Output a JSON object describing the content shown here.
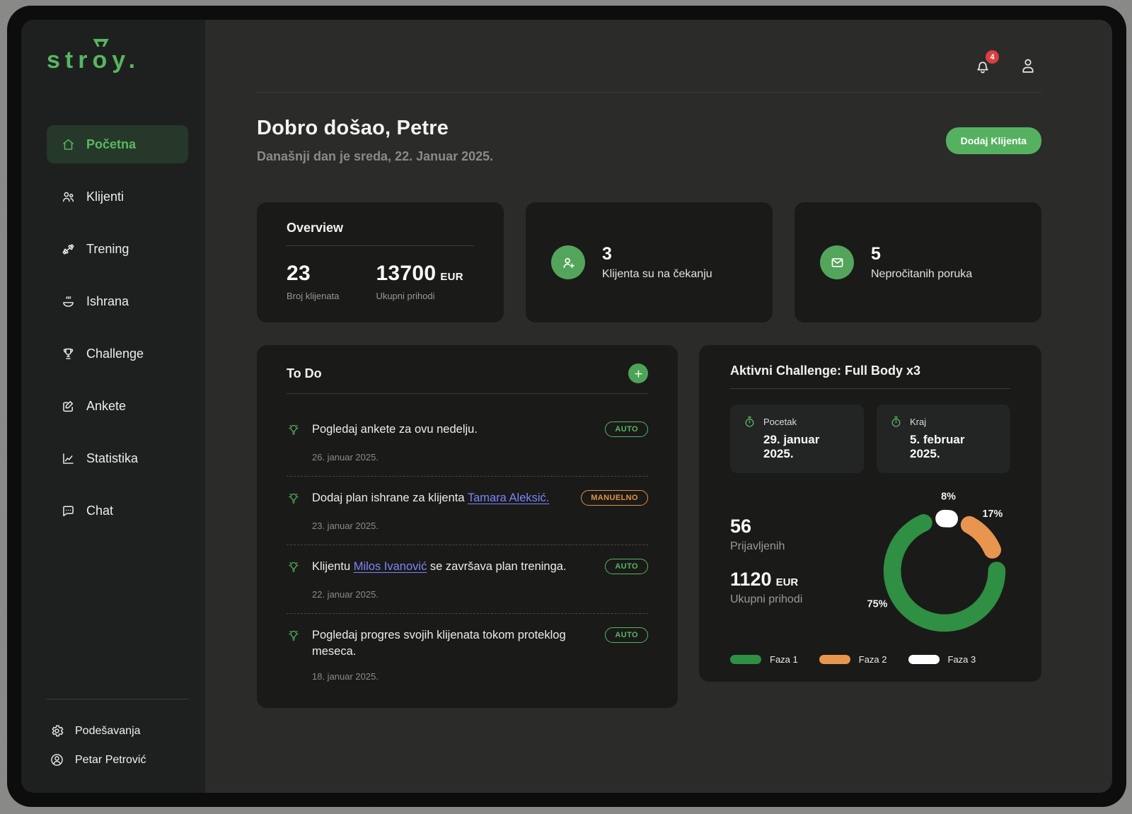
{
  "brand": {
    "logo_text": "stroy.",
    "logo_str": "str",
    "logo_o": "o",
    "logo_y": "y."
  },
  "colors": {
    "accent_green": "#57b560",
    "button_green": "#55b15f",
    "badge_orange": "#e2923f",
    "link_blue": "#7b86f8",
    "notification_red": "#d94040"
  },
  "sidebar": {
    "items": [
      {
        "label": "Početna",
        "icon": "home",
        "active": true
      },
      {
        "label": "Klijenti",
        "icon": "users",
        "active": false
      },
      {
        "label": "Trening",
        "icon": "dumbbell",
        "active": false
      },
      {
        "label": "Ishrana",
        "icon": "bowl",
        "active": false
      },
      {
        "label": "Challenge",
        "icon": "trophy",
        "active": false
      },
      {
        "label": "Ankete",
        "icon": "edit-note",
        "active": false
      },
      {
        "label": "Statistika",
        "icon": "line-chart",
        "active": false
      },
      {
        "label": "Chat",
        "icon": "chat-bubble",
        "active": false
      }
    ],
    "footer": {
      "settings_label": "Podešavanja",
      "profile_name": "Petar Petrović"
    }
  },
  "header": {
    "notification_count": "4"
  },
  "welcome": {
    "title": "Dobro došao, Petre",
    "subtitle": "Današnji dan je sreda, 22. Januar 2025.",
    "add_client_label": "Dodaj Klijenta"
  },
  "overview": {
    "title": "Overview",
    "clients_value": "23",
    "clients_label": "Broj klijenata",
    "revenue_value": "13700",
    "revenue_unit": "EUR",
    "revenue_label": "Ukupni prihodi"
  },
  "pending_card": {
    "value": "3",
    "label": "Klijenta su na čekanju"
  },
  "messages_card": {
    "value": "5",
    "label": "Nepročitanih poruka"
  },
  "todo": {
    "title": "To Do",
    "items": [
      {
        "text_pre": "Pogledaj ankete za ovu nedelju.",
        "link": "",
        "text_post": "",
        "date": "26. januar 2025.",
        "badge": "AUTO"
      },
      {
        "text_pre": "Dodaj plan ishrane za klijenta ",
        "link": "Tamara Aleksić.",
        "text_post": "",
        "date": "23. januar 2025.",
        "badge": "MANUELNO"
      },
      {
        "text_pre": "Klijentu ",
        "link": "Milos Ivanović",
        "text_post": " se završava plan treninga.",
        "date": "22. januar 2025.",
        "badge": "AUTO"
      },
      {
        "text_pre": "Pogledaj progres svojih klijenata tokom proteklog meseca.",
        "link": "",
        "text_post": "",
        "date": "18. januar 2025.",
        "badge": "AUTO"
      }
    ]
  },
  "challenge": {
    "title": "Aktivni Challenge: Full Body x3",
    "start_label": "Pocetak",
    "start_date": "29. januar 2025.",
    "end_label": "Kraj",
    "end_date": "5. februar 2025.",
    "enrolled_value": "56",
    "enrolled_label": "Prijavljenih",
    "revenue_value": "1120",
    "revenue_unit": "EUR",
    "revenue_label": "Ukupni prihodi"
  },
  "chart_data": {
    "type": "pie",
    "variant": "donut",
    "title": "Aktivni Challenge: Full Body x3 — raspodela faza",
    "labels": [
      "Faza 1",
      "Faza 2",
      "Faza 3"
    ],
    "values": [
      75,
      17,
      8
    ],
    "unit": "%",
    "annotations": [
      "75%",
      "17%",
      "8%"
    ],
    "colors": [
      "#2f8f42",
      "#e8954f",
      "#ffffff"
    ],
    "legend_position": "bottom",
    "start_angle": -12,
    "draw_order": [
      2,
      1,
      0
    ],
    "label_angles": [
      244,
      40,
      3
    ]
  }
}
